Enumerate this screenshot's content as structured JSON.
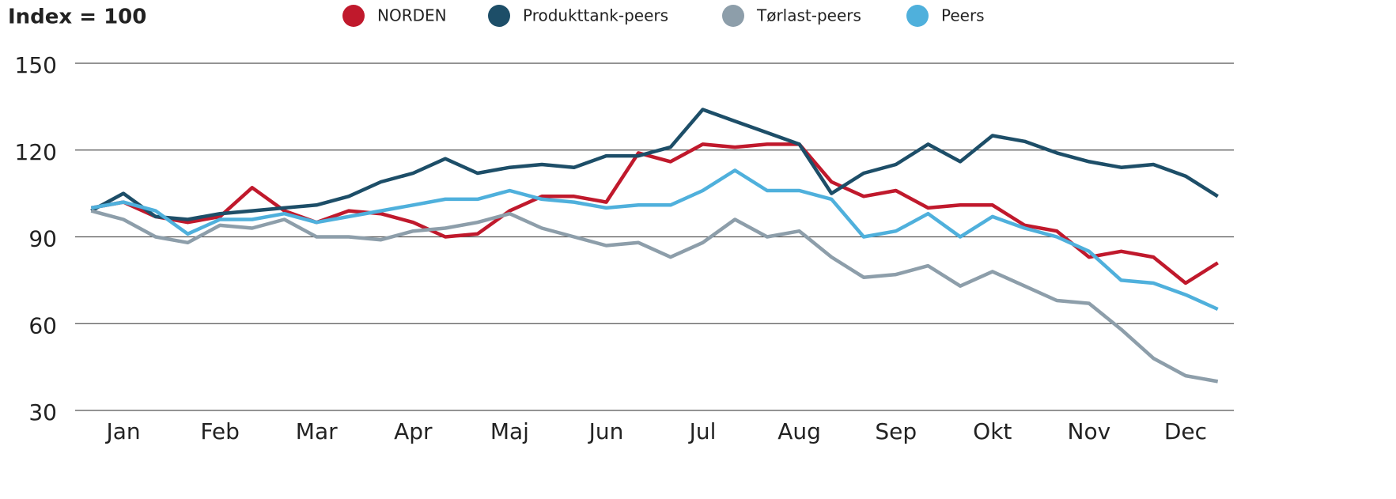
{
  "chart_data": {
    "type": "line",
    "title": "Index = 100",
    "categories": [
      null,
      "Jan",
      null,
      null,
      "Feb",
      null,
      null,
      "Mar",
      null,
      null,
      "Apr",
      null,
      null,
      "Maj",
      null,
      null,
      "Jun",
      null,
      null,
      "Jul",
      null,
      null,
      "Aug",
      null,
      null,
      "Sep",
      null,
      null,
      "Okt",
      null,
      null,
      "Nov",
      null,
      null,
      "Dec",
      null
    ],
    "series": [
      {
        "name": "NORDEN",
        "color": "#c0192c",
        "values": [
          100,
          102,
          97,
          95,
          97,
          107,
          99,
          95,
          99,
          98,
          95,
          90,
          91,
          99,
          104,
          104,
          102,
          119,
          116,
          122,
          121,
          122,
          122,
          109,
          104,
          106,
          100,
          101,
          101,
          94,
          92,
          83,
          85,
          83,
          74,
          81
        ]
      },
      {
        "name": "Produkttank-peers",
        "color": "#1d4e68",
        "values": [
          99,
          105,
          97,
          96,
          98,
          99,
          100,
          101,
          104,
          109,
          112,
          117,
          112,
          114,
          115,
          114,
          118,
          118,
          121,
          134,
          130,
          126,
          122,
          105,
          112,
          115,
          122,
          116,
          125,
          123,
          119,
          116,
          114,
          115,
          111,
          104
        ]
      },
      {
        "name": "Tørlast-peers",
        "color": "#8d9eaa",
        "values": [
          99,
          96,
          90,
          88,
          94,
          93,
          96,
          90,
          90,
          89,
          92,
          93,
          95,
          98,
          93,
          90,
          87,
          88,
          83,
          88,
          96,
          90,
          92,
          83,
          76,
          77,
          80,
          73,
          78,
          73,
          68,
          67,
          58,
          48,
          42,
          40
        ]
      },
      {
        "name": "Peers",
        "color": "#4fb0dc",
        "values": [
          100,
          102,
          99,
          91,
          96,
          96,
          98,
          95,
          97,
          99,
          101,
          103,
          103,
          106,
          103,
          102,
          100,
          101,
          101,
          106,
          113,
          106,
          106,
          103,
          90,
          92,
          98,
          90,
          97,
          93,
          90,
          85,
          75,
          74,
          70,
          65
        ]
      }
    ],
    "ylim": [
      30,
      150
    ],
    "yticks": [
      30,
      60,
      90,
      120,
      150
    ],
    "grid": true
  }
}
